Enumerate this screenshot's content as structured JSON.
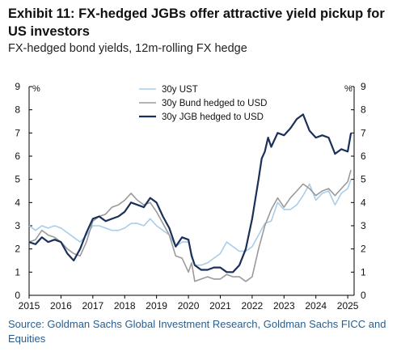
{
  "header": {
    "title": "Exhibit 11: FX-hedged JGBs offer attractive yield pickup for US investors",
    "subtitle": "FX-hedged bond yields, 12m-rolling FX hedge"
  },
  "footer": {
    "source": "Source: Goldman Sachs Global Investment Research, Goldman Sachs FICC and Equities"
  },
  "chart_data": {
    "type": "line",
    "title": "",
    "xlabel": "",
    "ylabel": "%",
    "ylabel_right": "%",
    "xlim": [
      2015,
      2025.2
    ],
    "ylim": [
      0,
      9
    ],
    "x_ticks": [
      "2015",
      "2016",
      "2017",
      "2018",
      "2019",
      "2020",
      "2021",
      "2022",
      "2023",
      "2024",
      "2025"
    ],
    "y_ticks": [
      "0",
      "1",
      "2",
      "3",
      "4",
      "5",
      "6",
      "7",
      "8",
      "9"
    ],
    "grid": false,
    "legend_position": "top-center",
    "series": [
      {
        "name": "30y UST",
        "color": "#a9cde8",
        "x": [
          2015.0,
          2015.2,
          2015.4,
          2015.6,
          2015.8,
          2016.0,
          2016.2,
          2016.4,
          2016.6,
          2016.8,
          2017.0,
          2017.2,
          2017.4,
          2017.6,
          2017.8,
          2018.0,
          2018.2,
          2018.4,
          2018.6,
          2018.8,
          2019.0,
          2019.2,
          2019.4,
          2019.6,
          2019.8,
          2020.0,
          2020.1,
          2020.2,
          2020.4,
          2020.6,
          2020.8,
          2021.0,
          2021.2,
          2021.4,
          2021.6,
          2021.8,
          2022.0,
          2022.2,
          2022.4,
          2022.6,
          2022.8,
          2023.0,
          2023.2,
          2023.4,
          2023.6,
          2023.8,
          2024.0,
          2024.2,
          2024.4,
          2024.6,
          2024.8,
          2025.0,
          2025.1
        ],
        "values": [
          3.0,
          2.8,
          3.0,
          2.9,
          3.0,
          2.9,
          2.7,
          2.5,
          2.3,
          2.6,
          3.0,
          3.0,
          2.9,
          2.8,
          2.8,
          2.9,
          3.1,
          3.1,
          3.0,
          3.3,
          3.0,
          2.8,
          2.6,
          2.1,
          2.3,
          2.3,
          1.8,
          1.3,
          1.3,
          1.4,
          1.6,
          1.8,
          2.3,
          2.1,
          1.9,
          1.9,
          2.1,
          2.6,
          3.1,
          3.2,
          4.0,
          3.7,
          3.7,
          3.9,
          4.3,
          4.8,
          4.1,
          4.4,
          4.5,
          3.9,
          4.4,
          4.6,
          5.0
        ]
      },
      {
        "name": "30y Bund hedged to USD",
        "color": "#9a9a9a",
        "x": [
          2015.0,
          2015.2,
          2015.4,
          2015.6,
          2015.8,
          2016.0,
          2016.2,
          2016.4,
          2016.6,
          2016.8,
          2017.0,
          2017.2,
          2017.4,
          2017.6,
          2017.8,
          2018.0,
          2018.2,
          2018.4,
          2018.6,
          2018.8,
          2019.0,
          2019.2,
          2019.4,
          2019.6,
          2019.8,
          2020.0,
          2020.1,
          2020.2,
          2020.4,
          2020.6,
          2020.8,
          2021.0,
          2021.2,
          2021.4,
          2021.6,
          2021.8,
          2022.0,
          2022.2,
          2022.4,
          2022.6,
          2022.8,
          2023.0,
          2023.2,
          2023.4,
          2023.6,
          2023.8,
          2024.0,
          2024.2,
          2024.4,
          2024.6,
          2024.8,
          2025.0,
          2025.1
        ],
        "values": [
          2.3,
          2.4,
          2.8,
          2.6,
          2.5,
          2.3,
          2.0,
          1.8,
          1.7,
          2.3,
          3.2,
          3.4,
          3.5,
          3.8,
          3.9,
          4.1,
          4.4,
          4.1,
          3.9,
          4.0,
          3.6,
          3.1,
          2.6,
          1.7,
          1.6,
          1.0,
          1.4,
          0.6,
          0.7,
          0.8,
          0.7,
          0.7,
          0.9,
          0.8,
          0.8,
          0.6,
          0.8,
          2.0,
          3.0,
          3.7,
          4.2,
          3.8,
          4.2,
          4.5,
          4.8,
          4.6,
          4.3,
          4.5,
          4.6,
          4.3,
          4.6,
          4.9,
          5.4
        ]
      },
      {
        "name": "30y JGB hedged to USD",
        "color": "#1a2f5a",
        "x": [
          2015.0,
          2015.2,
          2015.4,
          2015.6,
          2015.8,
          2016.0,
          2016.2,
          2016.4,
          2016.6,
          2016.8,
          2017.0,
          2017.2,
          2017.4,
          2017.6,
          2017.8,
          2018.0,
          2018.2,
          2018.4,
          2018.6,
          2018.8,
          2019.0,
          2019.2,
          2019.4,
          2019.6,
          2019.8,
          2020.0,
          2020.1,
          2020.2,
          2020.4,
          2020.6,
          2020.8,
          2021.0,
          2021.2,
          2021.4,
          2021.6,
          2021.8,
          2022.0,
          2022.2,
          2022.3,
          2022.4,
          2022.5,
          2022.6,
          2022.8,
          2023.0,
          2023.2,
          2023.4,
          2023.6,
          2023.8,
          2024.0,
          2024.2,
          2024.4,
          2024.6,
          2024.8,
          2025.0,
          2025.1
        ],
        "values": [
          2.3,
          2.2,
          2.5,
          2.3,
          2.4,
          2.3,
          1.8,
          1.5,
          2.0,
          2.7,
          3.3,
          3.4,
          3.2,
          3.3,
          3.4,
          3.6,
          4.0,
          3.9,
          3.8,
          4.2,
          4.0,
          3.4,
          2.9,
          2.1,
          2.5,
          2.4,
          1.7,
          1.3,
          1.1,
          1.1,
          1.2,
          1.2,
          1.0,
          1.0,
          1.3,
          2.0,
          3.3,
          5.0,
          5.9,
          6.2,
          6.8,
          6.4,
          7.0,
          6.9,
          7.2,
          7.6,
          7.8,
          7.1,
          6.8,
          6.9,
          6.8,
          6.1,
          6.3,
          6.2,
          7.0
        ]
      }
    ]
  }
}
